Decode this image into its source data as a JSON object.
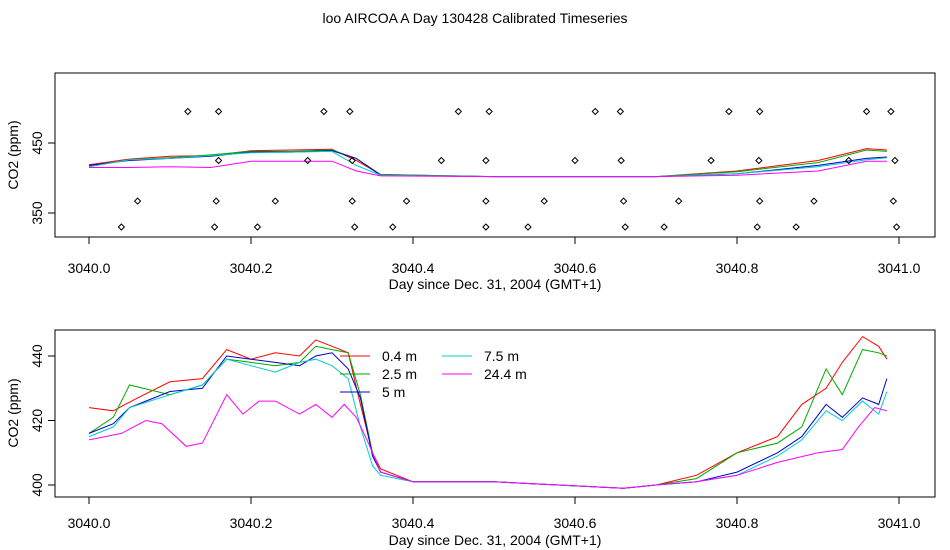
{
  "title": "loo AIRCOA A  Day 130428  Calibrated Timeseries",
  "chart_data": [
    {
      "type": "line",
      "xlabel": "Day since Dec. 31, 2004 (GMT+1)",
      "ylabel": "CO2 (ppm)",
      "xlim": [
        3039.95,
        3041.05
      ],
      "ylim": [
        320,
        510
      ],
      "xticks": [
        "3040.0",
        "3040.2",
        "3040.4",
        "3040.6",
        "3040.8",
        "3041.0"
      ],
      "yticks": [
        "350",
        "450"
      ],
      "marker_rows": [
        {
          "y": 495,
          "x": [
            3040.122,
            3040.16,
            3040.29,
            3040.322,
            3040.456,
            3040.494,
            3040.625,
            3040.656,
            3040.79,
            3040.828,
            3040.96,
            3040.99
          ]
        },
        {
          "y": 425,
          "x": [
            3040.16,
            3040.27,
            3040.325,
            3040.435,
            3040.49,
            3040.6,
            3040.657,
            3040.768,
            3040.827,
            3040.938,
            3040.995
          ]
        },
        {
          "y": 367,
          "x": [
            3040.06,
            3040.157,
            3040.23,
            3040.325,
            3040.392,
            3040.49,
            3040.562,
            3040.66,
            3040.728,
            3040.828,
            3040.895,
            3040.993
          ]
        },
        {
          "y": 330,
          "x": [
            3040.04,
            3040.155,
            3040.208,
            3040.328,
            3040.375,
            3040.49,
            3040.542,
            3040.662,
            3040.71,
            3040.825,
            3040.873,
            3040.997
          ]
        }
      ],
      "series": [
        {
          "color": "#ff0000",
          "x": [
            3040.0,
            3040.05,
            3040.1,
            3040.15,
            3040.2,
            3040.25,
            3040.3,
            3040.33,
            3040.36,
            3040.5,
            3040.7,
            3040.8,
            3040.9,
            3040.96,
            3040.985
          ],
          "values": [
            419,
            427,
            431,
            432,
            439,
            440,
            441,
            425,
            405,
            402,
            402,
            410,
            425,
            442,
            440
          ]
        },
        {
          "color": "#00aa00",
          "x": [
            3040.0,
            3040.05,
            3040.1,
            3040.15,
            3040.2,
            3040.25,
            3040.3,
            3040.33,
            3040.36,
            3040.5,
            3040.7,
            3040.8,
            3040.9,
            3040.96,
            3040.985
          ],
          "values": [
            417,
            426,
            429,
            433,
            438,
            438,
            440,
            428,
            405,
            402,
            402,
            409,
            422,
            440,
            438
          ]
        },
        {
          "color": "#0000cc",
          "x": [
            3040.0,
            3040.05,
            3040.1,
            3040.15,
            3040.2,
            3040.25,
            3040.3,
            3040.33,
            3040.36,
            3040.5,
            3040.7,
            3040.8,
            3040.9,
            3040.96,
            3040.985
          ],
          "values": [
            418,
            425,
            428,
            431,
            437,
            437,
            439,
            428,
            404,
            402,
            402,
            406,
            418,
            428,
            430
          ]
        },
        {
          "color": "#00cccc",
          "x": [
            3040.0,
            3040.05,
            3040.1,
            3040.15,
            3040.2,
            3040.25,
            3040.3,
            3040.33,
            3040.36,
            3040.5,
            3040.7,
            3040.8,
            3040.9,
            3040.96,
            3040.985
          ],
          "values": [
            416,
            426,
            428,
            432,
            436,
            437,
            438,
            418,
            404,
            402,
            402,
            406,
            416,
            426,
            429
          ]
        },
        {
          "color": "#ff00ff",
          "x": [
            3040.0,
            3040.05,
            3040.1,
            3040.15,
            3040.2,
            3040.25,
            3040.3,
            3040.33,
            3040.36,
            3040.5,
            3040.7,
            3040.8,
            3040.9,
            3040.96,
            3040.985
          ],
          "values": [
            415,
            415,
            416,
            415,
            424,
            424,
            424,
            410,
            403,
            402,
            402,
            404,
            410,
            424,
            424
          ]
        }
      ]
    },
    {
      "type": "line",
      "xlabel": "Day since Dec. 31, 2004 (GMT+1)",
      "ylabel": "CO2 (ppm)",
      "xlim": [
        3039.95,
        3041.05
      ],
      "ylim": [
        397,
        446
      ],
      "xticks": [
        "3040.0",
        "3040.2",
        "3040.4",
        "3040.6",
        "3040.8",
        "3041.0"
      ],
      "yticks": [
        "400",
        "420",
        "440"
      ],
      "legend": [
        {
          "label": "0.4 m",
          "color": "#ff0000"
        },
        {
          "label": "2.5 m",
          "color": "#00aa00"
        },
        {
          "label": "5 m",
          "color": "#0000cc"
        },
        {
          "label": "7.5 m",
          "color": "#00cccc"
        },
        {
          "label": "24.4 m",
          "color": "#ff00ff"
        }
      ],
      "series": [
        {
          "name": "0.4 m",
          "color": "#ff0000",
          "x": [
            3040.0,
            3040.03,
            3040.06,
            3040.1,
            3040.14,
            3040.17,
            3040.2,
            3040.23,
            3040.26,
            3040.28,
            3040.3,
            3040.32,
            3040.335,
            3040.35,
            3040.36,
            3040.4,
            3040.5,
            3040.66,
            3040.7,
            3040.75,
            3040.8,
            3040.85,
            3040.88,
            3040.91,
            3040.93,
            3040.955,
            3040.975,
            3040.985
          ],
          "values": [
            424,
            423,
            427,
            432,
            433,
            442,
            439,
            441,
            440,
            445,
            443,
            441,
            425,
            410,
            405,
            401,
            401,
            399,
            400,
            403,
            410,
            415,
            425,
            430,
            438,
            446,
            443,
            439
          ]
        },
        {
          "name": "2.5 m",
          "color": "#00aa00",
          "x": [
            3040.0,
            3040.03,
            3040.05,
            3040.1,
            3040.14,
            3040.17,
            3040.2,
            3040.23,
            3040.26,
            3040.28,
            3040.3,
            3040.32,
            3040.335,
            3040.35,
            3040.36,
            3040.4,
            3040.5,
            3040.66,
            3040.7,
            3040.75,
            3040.8,
            3040.85,
            3040.88,
            3040.91,
            3040.93,
            3040.955,
            3040.975,
            3040.985
          ],
          "values": [
            416,
            421,
            431,
            428,
            431,
            439,
            438,
            437,
            438,
            443,
            442,
            441,
            428,
            410,
            404,
            401,
            401,
            399,
            400,
            402,
            410,
            413,
            418,
            436,
            428,
            442,
            441,
            440
          ]
        },
        {
          "name": "5 m",
          "color": "#0000cc",
          "x": [
            3040.0,
            3040.03,
            3040.05,
            3040.1,
            3040.14,
            3040.17,
            3040.2,
            3040.23,
            3040.26,
            3040.28,
            3040.3,
            3040.32,
            3040.335,
            3040.35,
            3040.36,
            3040.4,
            3040.5,
            3040.66,
            3040.7,
            3040.75,
            3040.8,
            3040.85,
            3040.88,
            3040.91,
            3040.93,
            3040.955,
            3040.975,
            3040.985
          ],
          "values": [
            416,
            419,
            424,
            429,
            430,
            440,
            439,
            438,
            437,
            440,
            441,
            436,
            427,
            409,
            404,
            401,
            401,
            399,
            400,
            401,
            404,
            410,
            415,
            425,
            421,
            427,
            425,
            433
          ]
        },
        {
          "name": "7.5 m",
          "color": "#00cccc",
          "x": [
            3040.0,
            3040.03,
            3040.05,
            3040.1,
            3040.14,
            3040.17,
            3040.2,
            3040.23,
            3040.26,
            3040.28,
            3040.3,
            3040.32,
            3040.335,
            3040.35,
            3040.36,
            3040.4,
            3040.5,
            3040.66,
            3040.7,
            3040.75,
            3040.8,
            3040.85,
            3040.88,
            3040.91,
            3040.93,
            3040.955,
            3040.975,
            3040.985
          ],
          "values": [
            415,
            418,
            424,
            428,
            431,
            439,
            437,
            435,
            438,
            439,
            437,
            433,
            418,
            406,
            403,
            401,
            401,
            399,
            400,
            401,
            403,
            409,
            414,
            423,
            420,
            426,
            422,
            429
          ]
        },
        {
          "name": "24.4 m",
          "color": "#ff00ff",
          "x": [
            3040.0,
            3040.02,
            3040.04,
            3040.07,
            3040.09,
            3040.12,
            3040.14,
            3040.17,
            3040.19,
            3040.21,
            3040.23,
            3040.26,
            3040.28,
            3040.3,
            3040.315,
            3040.33,
            3040.345,
            3040.36,
            3040.4,
            3040.5,
            3040.66,
            3040.7,
            3040.75,
            3040.8,
            3040.85,
            3040.9,
            3040.93,
            3040.95,
            3040.97,
            3040.985
          ],
          "values": [
            414,
            415,
            416,
            420,
            419,
            412,
            413,
            428,
            422,
            426,
            426,
            422,
            425,
            421,
            425,
            421,
            413,
            404,
            401,
            401,
            399,
            400,
            401,
            403,
            407,
            410,
            411,
            418,
            424,
            423
          ]
        }
      ]
    }
  ]
}
